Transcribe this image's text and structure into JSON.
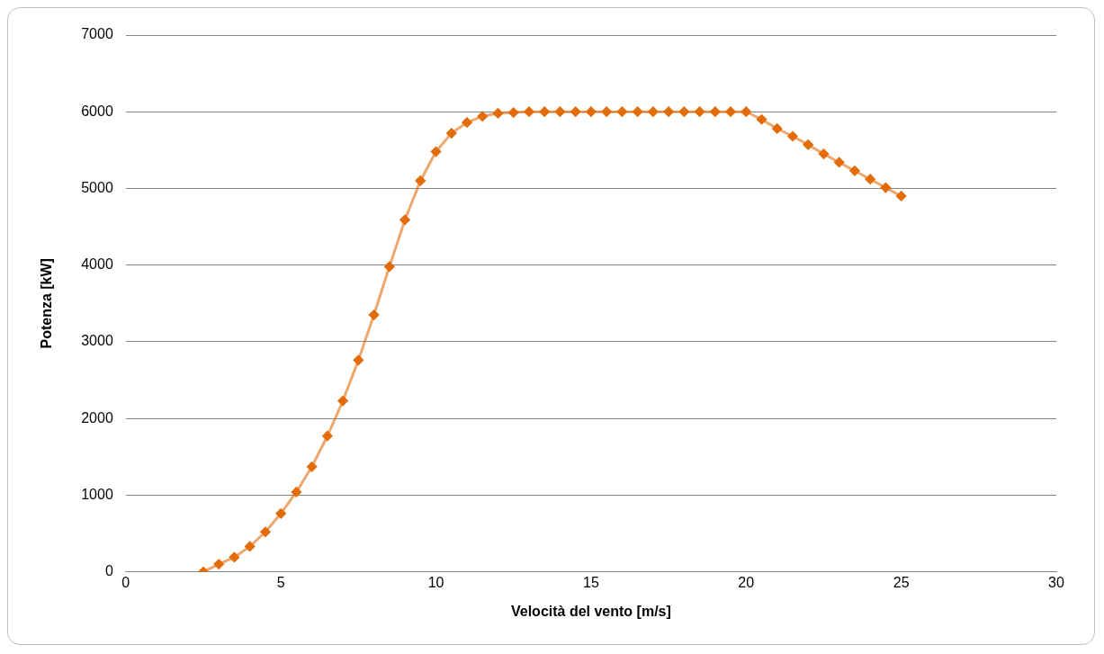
{
  "chart_data": {
    "type": "line",
    "xlabel": "Velocità del vento [m/s]",
    "ylabel": "Potenza [kW]",
    "x": [
      2.5,
      3,
      3.5,
      4,
      4.5,
      5,
      5.5,
      6,
      6.5,
      7,
      7.5,
      8,
      8.5,
      9,
      9.5,
      10,
      10.5,
      11,
      11.5,
      12,
      12.5,
      13,
      13.5,
      14,
      14.5,
      15,
      15.5,
      16,
      16.5,
      17,
      17.5,
      18,
      18.5,
      19,
      19.5,
      20,
      20.5,
      21,
      21.5,
      22,
      22.5,
      23,
      23.5,
      24,
      24.5,
      25
    ],
    "series": [
      {
        "color": "#e36c0a",
        "values": [
          0,
          100,
          190,
          330,
          520,
          760,
          1040,
          1370,
          1770,
          2230,
          2760,
          3350,
          3980,
          4590,
          5100,
          5480,
          5720,
          5860,
          5940,
          5980,
          5990,
          6000,
          6000,
          6000,
          6000,
          6000,
          6000,
          6000,
          6000,
          6000,
          6000,
          6000,
          6000,
          6000,
          6000,
          6000,
          5900,
          5780,
          5680,
          5570,
          5450,
          5340,
          5230,
          5120,
          5010,
          4900
        ]
      }
    ],
    "xlim": [
      0,
      30
    ],
    "xticks": [
      0,
      5,
      10,
      15,
      20,
      25,
      30
    ],
    "ylim": [
      0,
      7000
    ],
    "yticks": [
      0,
      1000,
      2000,
      3000,
      4000,
      5000,
      6000,
      7000
    ],
    "grid": "y",
    "marker": "diamond",
    "line_style": "solid"
  }
}
